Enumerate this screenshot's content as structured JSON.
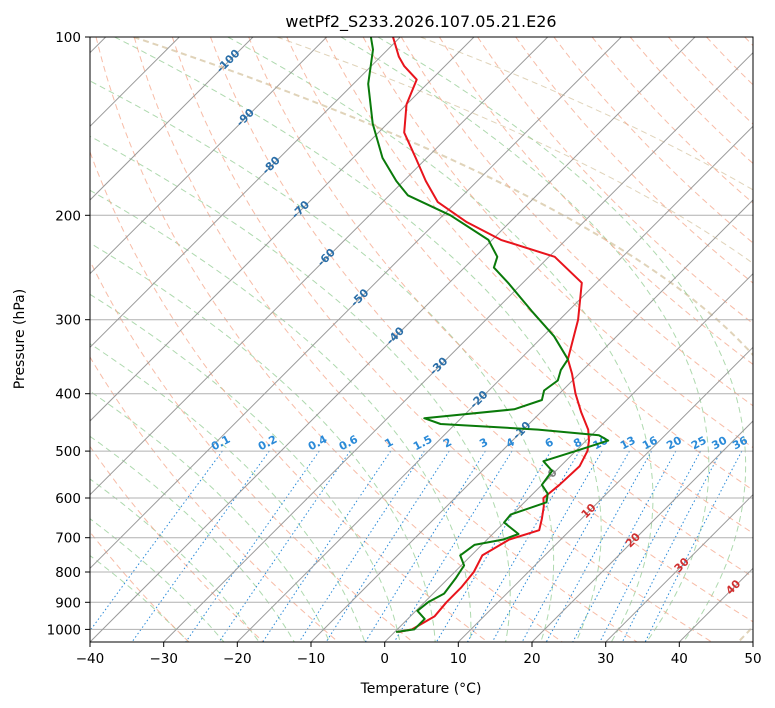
{
  "chart_data": {
    "type": "line",
    "subtype": "skew-t log-p diagram",
    "title": "wetPf2_S233.2026.107.05.21.E26",
    "xlabel": "Temperature (°C)",
    "ylabel": "Pressure (hPa)",
    "xlim": [
      -40,
      50
    ],
    "ylim": [
      1050,
      100
    ],
    "yscale": "log",
    "x_ticks": [
      -40,
      -30,
      -20,
      -10,
      0,
      10,
      20,
      30,
      40,
      50
    ],
    "y_ticks": [
      100,
      200,
      300,
      400,
      500,
      600,
      700,
      800,
      900,
      1000
    ],
    "grid": true,
    "colors": {
      "temperature": "#e8141c",
      "dewpoint": "#0a7a0a",
      "isotherm": "#9a9a9a",
      "isobar": "#b0b0b0",
      "dry_adiabat": "#f4a58a",
      "moist_adiabat": "#8cc98c",
      "mixing_ratio": "#2a8ad8",
      "theta_e": "#d8c8a8",
      "isotherm_label": "#2a6ea8",
      "mixing_label": "#2a8ad8",
      "warm_label": "#d03030",
      "zero_label": "#808080"
    },
    "series": [
      {
        "name": "",
        "role": "temperature",
        "pressure": [
          1010,
          1000,
          950,
          900,
          850,
          800,
          750,
          705,
          680,
          650,
          620,
          600,
          570,
          530,
          500,
          480,
          460,
          430,
          400,
          370,
          350,
          300,
          260,
          235,
          220,
          205,
          190,
          175,
          160,
          145,
          130,
          118,
          112,
          108,
          100
        ],
        "temperature": [
          0.5,
          2.0,
          3.3,
          3.0,
          3.0,
          2.6,
          1.5,
          3.0,
          5.8,
          4.6,
          3.2,
          2.0,
          2.4,
          2.6,
          1.6,
          0.4,
          -1.2,
          -4.5,
          -7.8,
          -11.0,
          -13.5,
          -17.5,
          -22.0,
          -29.2,
          -38.8,
          -46.0,
          -52.5,
          -57.0,
          -61.5,
          -66.5,
          -70.0,
          -72.0,
          -75.5,
          -77.5,
          -81.0
        ]
      },
      {
        "name": "",
        "role": "dewpoint",
        "pressure": [
          1010,
          1000,
          960,
          930,
          900,
          870,
          820,
          780,
          750,
          720,
          705,
          690,
          660,
          640,
          610,
          590,
          570,
          540,
          520,
          500,
          480,
          470,
          460,
          450,
          440,
          425,
          410,
          395,
          380,
          365,
          350,
          320,
          290,
          260,
          245,
          235,
          220,
          200,
          185,
          175,
          160,
          140,
          120,
          105,
          100
        ],
        "temperature": [
          0.2,
          2.3,
          2.3,
          0.2,
          0.5,
          1.5,
          1.0,
          0.4,
          -1.5,
          -1.0,
          2.2,
          3.5,
          0.0,
          -0.2,
          3.0,
          2.0,
          0.0,
          -0.5,
          -3.0,
          0.0,
          3.0,
          1.0,
          -8.0,
          -22.0,
          -25.0,
          -14.0,
          -11.5,
          -12.5,
          -12.0,
          -13.0,
          -13.5,
          -18.5,
          -25.0,
          -32.0,
          -36.0,
          -37.0,
          -40.5,
          -49.0,
          -57.5,
          -61.0,
          -66.0,
          -72.0,
          -78.0,
          -82.0,
          -84.0
        ]
      }
    ],
    "isotherm_labels": [
      "-100",
      "-90",
      "-80",
      "-70",
      "-60",
      "-50",
      "-40",
      "-30",
      "-20",
      "-10",
      "0",
      "10",
      "20",
      "30",
      "40"
    ],
    "mixing_ratio_labels": [
      "0.1",
      "0.2",
      "0.4",
      "0.6",
      "1",
      "1.5",
      "2",
      "3",
      "4",
      "6",
      "8",
      "10",
      "13",
      "16",
      "20",
      "25",
      "30",
      "36"
    ]
  }
}
